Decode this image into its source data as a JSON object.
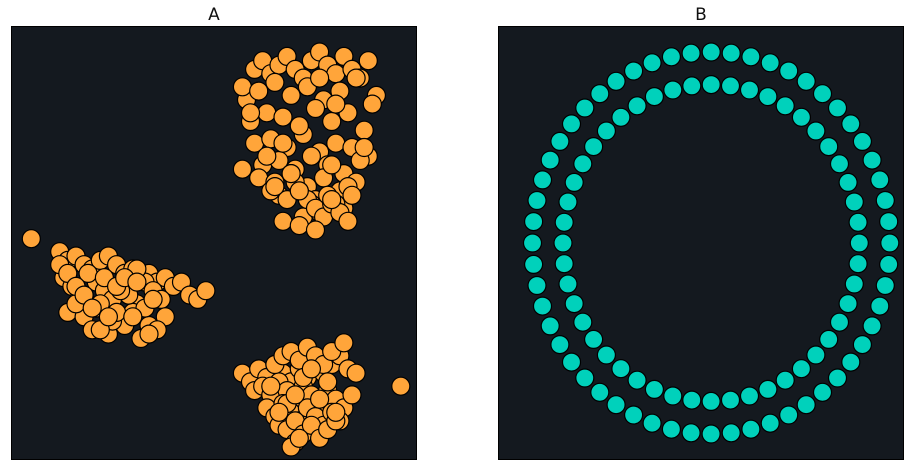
{
  "chart_data": [
    {
      "type": "scatter",
      "title": "A",
      "xlabel": "",
      "ylabel": "",
      "grid": false,
      "axes_visible": false,
      "xlim": [
        0,
        100
      ],
      "ylim": [
        0,
        100
      ],
      "background": "#14191f",
      "marker_color": "#ffa53a",
      "marker_edge": "#000000",
      "series": [
        {
          "x": [
            60,
            62,
            64,
            66,
            68,
            70,
            72,
            74,
            76,
            78,
            80,
            82,
            84,
            86,
            88,
            90,
            58,
            57,
            61,
            65,
            69,
            73,
            77,
            81,
            85,
            89,
            59,
            63,
            67,
            71,
            75,
            79,
            83,
            87,
            60,
            64,
            68,
            72,
            76,
            80,
            84,
            88,
            62,
            66,
            70,
            74,
            78,
            82,
            86,
            61,
            65,
            69,
            73,
            77,
            81,
            85,
            57,
            63,
            67,
            71,
            75,
            79,
            83,
            66,
            70,
            74,
            78,
            82,
            64,
            68,
            72,
            76,
            80,
            84,
            67,
            71,
            73,
            75,
            77,
            79,
            81,
            83,
            65,
            69,
            71,
            75,
            79,
            87,
            59,
            80,
            76,
            71
          ],
          "y": [
            90,
            92,
            89,
            91,
            93,
            90,
            88,
            92,
            94,
            91,
            89,
            93,
            90,
            88,
            92,
            84,
            83,
            86,
            85,
            87,
            84,
            86,
            83,
            85,
            88,
            82,
            78,
            80,
            79,
            77,
            81,
            78,
            80,
            76,
            73,
            74,
            72,
            75,
            71,
            73,
            72,
            70,
            68,
            69,
            67,
            70,
            68,
            66,
            69,
            65,
            64,
            66,
            63,
            65,
            62,
            64,
            67,
            70,
            73,
            62,
            60,
            68,
            63,
            61,
            64,
            59,
            61,
            58,
            62,
            60,
            56,
            57,
            59,
            61,
            55,
            54,
            60,
            58,
            56,
            59,
            57,
            55,
            63,
            66,
            62,
            53,
            60,
            72,
            80,
            82,
            88,
            77
          ]
        },
        {
          "x": [
            5,
            12,
            14,
            16,
            18,
            20,
            22,
            24,
            26,
            28,
            30,
            32,
            34,
            36,
            38,
            40,
            42,
            44,
            46,
            48,
            13,
            15,
            17,
            19,
            21,
            23,
            25,
            27,
            29,
            31,
            33,
            35,
            37,
            14,
            18,
            22,
            26,
            30,
            34,
            38,
            20,
            24,
            28,
            32,
            36,
            16,
            21,
            25,
            29,
            33,
            19,
            23,
            27,
            31,
            35,
            22,
            26,
            30,
            34,
            12,
            14,
            16,
            18,
            20,
            22,
            24,
            26,
            28,
            31
          ],
          "y": [
            51,
            48,
            46,
            47,
            45,
            44,
            46,
            47,
            45,
            43,
            44,
            42,
            43,
            41,
            42,
            40,
            41,
            38,
            37,
            39,
            42,
            40,
            38,
            36,
            41,
            39,
            37,
            40,
            38,
            36,
            41,
            39,
            37,
            34,
            33,
            35,
            32,
            34,
            31,
            33,
            30,
            29,
            31,
            28,
            30,
            36,
            35,
            32,
            38,
            35,
            43,
            42,
            39,
            44,
            37,
            36,
            34,
            33,
            29,
            45,
            43,
            40,
            38,
            35,
            30,
            33,
            40,
            42,
            41
          ]
        },
        {
          "x": [
            57,
            59,
            61,
            63,
            65,
            67,
            69,
            71,
            73,
            75,
            77,
            79,
            81,
            83,
            85,
            60,
            62,
            64,
            66,
            68,
            70,
            72,
            74,
            76,
            78,
            80,
            82,
            84,
            63,
            65,
            67,
            69,
            71,
            73,
            75,
            77,
            79,
            81,
            66,
            68,
            70,
            72,
            74,
            76,
            78,
            80,
            65,
            67,
            69,
            71,
            73,
            75,
            77,
            79,
            64,
            68,
            72,
            76,
            80,
            70,
            74,
            78,
            66,
            70,
            96,
            69,
            71,
            82
          ],
          "y": [
            20,
            18,
            21,
            19,
            22,
            20,
            18,
            21,
            19,
            23,
            20,
            22,
            24,
            21,
            20,
            16,
            17,
            15,
            18,
            16,
            14,
            17,
            15,
            13,
            16,
            14,
            12,
            15,
            12,
            10,
            13,
            11,
            9,
            12,
            10,
            8,
            11,
            9,
            8,
            7,
            9,
            6,
            8,
            5,
            7,
            9,
            22,
            24,
            25,
            23,
            26,
            24,
            22,
            25,
            17,
            13,
            19,
            14,
            11,
            4,
            21,
            18,
            11,
            15,
            17,
            3,
            5,
            27
          ]
        }
      ]
    },
    {
      "type": "scatter",
      "title": "B",
      "xlabel": "",
      "ylabel": "",
      "grid": false,
      "axes_visible": false,
      "xlim": [
        0,
        100
      ],
      "ylim": [
        0,
        100
      ],
      "background": "#14191f",
      "marker_color": "#00d1bb",
      "marker_edge": "#000000",
      "rings": [
        {
          "cx": 52.5,
          "cy": 50,
          "r": 44,
          "points": 56
        },
        {
          "cx": 52.5,
          "cy": 50,
          "r": 36.5,
          "points": 48
        }
      ]
    }
  ]
}
